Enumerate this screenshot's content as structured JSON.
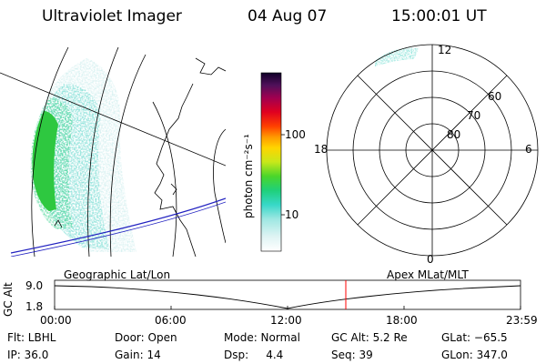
{
  "header": {
    "title": "Ultraviolet Imager",
    "date": "04 Aug 07",
    "time": "15:00:01 UT"
  },
  "colorbar": {
    "unit_label": "photon cm⁻²s⁻¹",
    "ticks": [
      "100",
      "10"
    ]
  },
  "polar_plot": {
    "hour_labels": {
      "top": "12",
      "left": "18",
      "right": "6",
      "bottom": "0"
    },
    "lat_labels": [
      "60",
      "70",
      "80"
    ]
  },
  "timeline": {
    "left_caption": "Geographic Lat/Lon",
    "right_caption": "Apex MLat/MLT",
    "axis_title": "GC Alt",
    "y_ticks": [
      "9.0",
      "1.8"
    ],
    "x_ticks": [
      "00:00",
      "06:00",
      "12:00",
      "18:00",
      "23:59"
    ],
    "current_time_fraction": 0.625,
    "marker_color": "#ff0000"
  },
  "info": {
    "filter": "Flt: LBHL",
    "ip": "IP: 36.0",
    "door": "Door: Open",
    "gain": "Gain: 14",
    "mode": "Mode: Normal",
    "dsp": "Dsp:     4.4",
    "gc_alt": "GC Alt: 5.2 Re",
    "seq": "Seq: 39",
    "glat": "GLat: −65.5",
    "glon": "GLon: 347.0"
  }
}
